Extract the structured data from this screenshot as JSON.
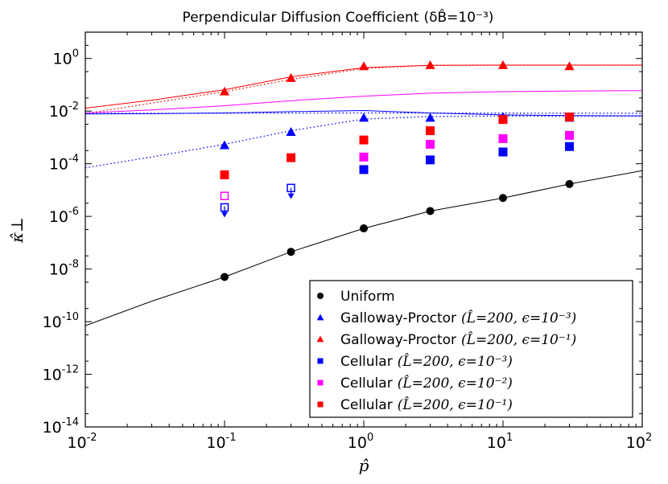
{
  "chart_data": {
    "type": "scatter",
    "title": "Perpendicular Diffusion Coefficient",
    "title_math": "(δB̂=10⁻³)",
    "xlabel": "p̂",
    "ylabel": "κ̂⊥",
    "xscale": "log",
    "yscale": "log",
    "xlim": [
      0.01,
      100
    ],
    "ylim": [
      1e-14,
      10
    ],
    "x_ticks": [
      {
        "base": "10",
        "exp": "-2"
      },
      {
        "base": "10",
        "exp": "-1"
      },
      {
        "base": "10",
        "exp": "0"
      },
      {
        "base": "10",
        "exp": "1"
      },
      {
        "base": "10",
        "exp": "2"
      }
    ],
    "y_ticks": [
      {
        "base": "10",
        "exp": "-14"
      },
      {
        "base": "10",
        "exp": "-12"
      },
      {
        "base": "10",
        "exp": "-10"
      },
      {
        "base": "10",
        "exp": "-8"
      },
      {
        "base": "10",
        "exp": "-6"
      },
      {
        "base": "10",
        "exp": "-4"
      },
      {
        "base": "10",
        "exp": "-2"
      },
      {
        "base": "10",
        "exp": "0"
      }
    ],
    "series": [
      {
        "name": "Uniform",
        "legend_math": "",
        "color": "#000000",
        "marker": "circle",
        "x": [
          0.1,
          0.3,
          1,
          3,
          10,
          30
        ],
        "y": [
          5e-09,
          4.5e-08,
          3.5e-07,
          1.6e-06,
          5e-06,
          1.7e-05
        ]
      },
      {
        "name": "Galloway-Proctor",
        "legend_math": "(L̂=200, ϵ=10⁻³)",
        "color": "#0000ff",
        "marker": "triangle",
        "x": [
          0.1,
          0.3,
          1,
          3,
          10,
          30
        ],
        "y": [
          0.0005,
          0.0016,
          0.0055,
          0.0055,
          0.006,
          0.0055
        ]
      },
      {
        "name": "Galloway-Proctor",
        "legend_math": "(L̂=200, ϵ=10⁻¹)",
        "color": "#ff0000",
        "marker": "triangle",
        "x": [
          0.1,
          0.3,
          1,
          3,
          10,
          30
        ],
        "y": [
          0.055,
          0.18,
          0.5,
          0.55,
          0.55,
          0.5
        ]
      },
      {
        "name": "Cellular",
        "legend_math": "(L̂=200, ϵ=10⁻³)",
        "color": "#0000ff",
        "marker": "square",
        "x": [
          1,
          3,
          10,
          30
        ],
        "y": [
          6e-05,
          0.00014,
          0.00028,
          0.00045
        ]
      },
      {
        "name": "Cellular",
        "legend_math": "(L̂=200, ϵ=10⁻²)",
        "color": "#ff00ff",
        "marker": "square",
        "x": [
          1,
          3,
          10,
          30
        ],
        "y": [
          0.00018,
          0.00055,
          0.0009,
          0.0012
        ]
      },
      {
        "name": "Cellular",
        "legend_math": "(L̂=200, ϵ=10⁻¹)",
        "color": "#ff0000",
        "marker": "square",
        "x": [
          0.1,
          0.3,
          1,
          3,
          10,
          30
        ],
        "y": [
          3.8e-05,
          0.00017,
          0.0008,
          0.0018,
          0.0048,
          0.006
        ]
      }
    ],
    "open_markers": [
      {
        "color": "#ff00ff",
        "x": 0.1,
        "y": 6e-06
      },
      {
        "color": "#0000ff",
        "x": 0.1,
        "y": 2.2e-06
      },
      {
        "color": "#0000ff",
        "x": 0.3,
        "y": 1.2e-05
      }
    ],
    "upper_limits": [
      {
        "color": "#0000ff",
        "x": 0.1,
        "y": 1.2e-06
      },
      {
        "color": "#0000ff",
        "x": 0.3,
        "y": 6e-06
      }
    ],
    "curves": [
      {
        "name": "uniform-curve",
        "color": "#000000",
        "style": "solid",
        "x": [
          0.01,
          0.03,
          0.1,
          0.3,
          1,
          3,
          10,
          30,
          100
        ],
        "y": [
          7e-11,
          6e-10,
          5e-09,
          4.5e-08,
          3.5e-07,
          1.6e-06,
          5e-06,
          1.7e-05,
          5.5e-05
        ]
      },
      {
        "name": "red-solid-curve",
        "color": "#ff0000",
        "style": "solid",
        "x": [
          0.01,
          0.03,
          0.1,
          0.3,
          1,
          3,
          10,
          30,
          100
        ],
        "y": [
          0.013,
          0.026,
          0.065,
          0.2,
          0.45,
          0.55,
          0.56,
          0.56,
          0.56
        ]
      },
      {
        "name": "red-dotted-curve",
        "color": "#ff0000",
        "style": "dotted",
        "x": [
          0.01,
          0.03,
          0.1,
          0.3,
          1,
          3,
          10,
          30,
          100
        ],
        "y": [
          0.008,
          0.02,
          0.055,
          0.16,
          0.42,
          0.55,
          0.56,
          0.56,
          0.56
        ]
      },
      {
        "name": "magenta-solid-curve",
        "color": "#ff00ff",
        "style": "solid",
        "x": [
          0.01,
          0.03,
          0.1,
          0.3,
          1,
          3,
          10,
          30,
          100
        ],
        "y": [
          0.0085,
          0.011,
          0.016,
          0.025,
          0.037,
          0.048,
          0.055,
          0.058,
          0.06
        ]
      },
      {
        "name": "blue-solid-curve",
        "color": "#0000ff",
        "style": "solid",
        "x": [
          0.01,
          0.03,
          0.1,
          0.3,
          1,
          3,
          10,
          30,
          100
        ],
        "y": [
          0.0078,
          0.008,
          0.0085,
          0.0095,
          0.0105,
          0.0085,
          0.0072,
          0.0068,
          0.0066
        ]
      },
      {
        "name": "blue-dotted-curve",
        "color": "#0000ff",
        "style": "dotted",
        "x": [
          0.01,
          0.03,
          0.1,
          0.3,
          1,
          3,
          10,
          30,
          100
        ],
        "y": [
          7e-05,
          0.00018,
          0.00055,
          0.0018,
          0.005,
          0.0063,
          0.0065,
          0.0064,
          0.0064
        ]
      },
      {
        "name": "blue-top-dotted-curve",
        "color": "#0000ff",
        "style": "dotted",
        "x": [
          0.01,
          0.1,
          1,
          10,
          100
        ],
        "y": [
          0.0082,
          0.0083,
          0.0085,
          0.0084,
          0.0083
        ]
      }
    ],
    "legend_position": "bottom-right"
  }
}
